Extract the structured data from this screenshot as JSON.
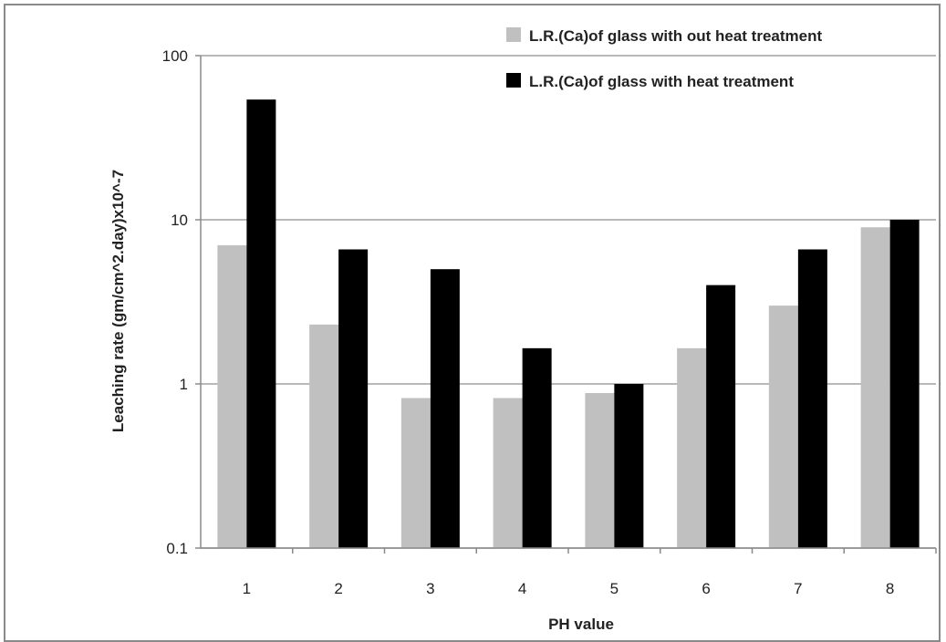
{
  "chart_data": {
    "type": "bar",
    "title": "",
    "xlabel": "PH value",
    "ylabel": "Leaching rate (gm/cm^2.day)x10^-7",
    "yscale": "log",
    "ylim": [
      0.1,
      100
    ],
    "yticks": [
      "0.1",
      "1",
      "10",
      "100"
    ],
    "grid": "horizontal major gridlines",
    "legend_position": "top-right",
    "categories": [
      "1",
      "2",
      "3",
      "4",
      "5",
      "6",
      "7",
      "8"
    ],
    "series": [
      {
        "name": "L.R.(Ca)of glass with out heat treatment",
        "color": "#c0c0c0",
        "values": [
          7.0,
          2.3,
          0.82,
          0.82,
          0.88,
          1.65,
          3.0,
          9.0
        ]
      },
      {
        "name": "L.R.(Ca)of glass with heat treatment",
        "color": "#000000",
        "values": [
          54,
          6.6,
          5.0,
          1.65,
          1.0,
          4.0,
          6.6,
          10.0
        ]
      }
    ]
  }
}
